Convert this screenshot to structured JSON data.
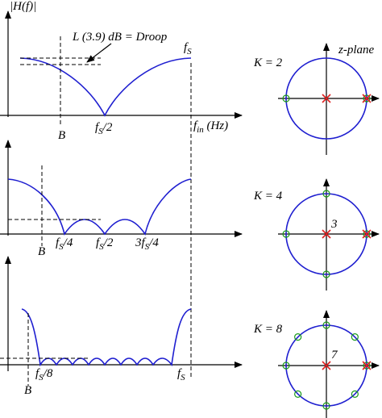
{
  "plots": [
    {
      "y_axis_label": "|H(f)|",
      "droop_label": "L (3.9) dB = Droop",
      "peak_label": {
        "base": "f",
        "sub": "S"
      },
      "x_axis_label": {
        "base": "f",
        "sub": "in",
        "tail": " (Hz)"
      },
      "ticks": [
        {
          "base": "f",
          "sub": "S",
          "tail": "/2"
        }
      ],
      "band_edge": "B"
    },
    {
      "ticks": [
        {
          "base": "f",
          "sub": "S",
          "tail": "/4"
        },
        {
          "base": "f",
          "sub": "S",
          "tail": "/2"
        },
        {
          "base": "3f",
          "sub": "S",
          "tail": "/4"
        }
      ],
      "band_edge": "B"
    },
    {
      "ticks": [
        {
          "base": "f",
          "sub": "S",
          "tail": "/8"
        },
        {
          "base": "f",
          "sub": "S"
        }
      ],
      "band_edge": "B"
    }
  ],
  "zplanes": [
    {
      "k_label": "K = 2",
      "title": "z-plane"
    },
    {
      "k_label": "K = 4",
      "multiplicity": "3"
    },
    {
      "k_label": "K = 8",
      "multiplicity": "7"
    }
  ]
}
